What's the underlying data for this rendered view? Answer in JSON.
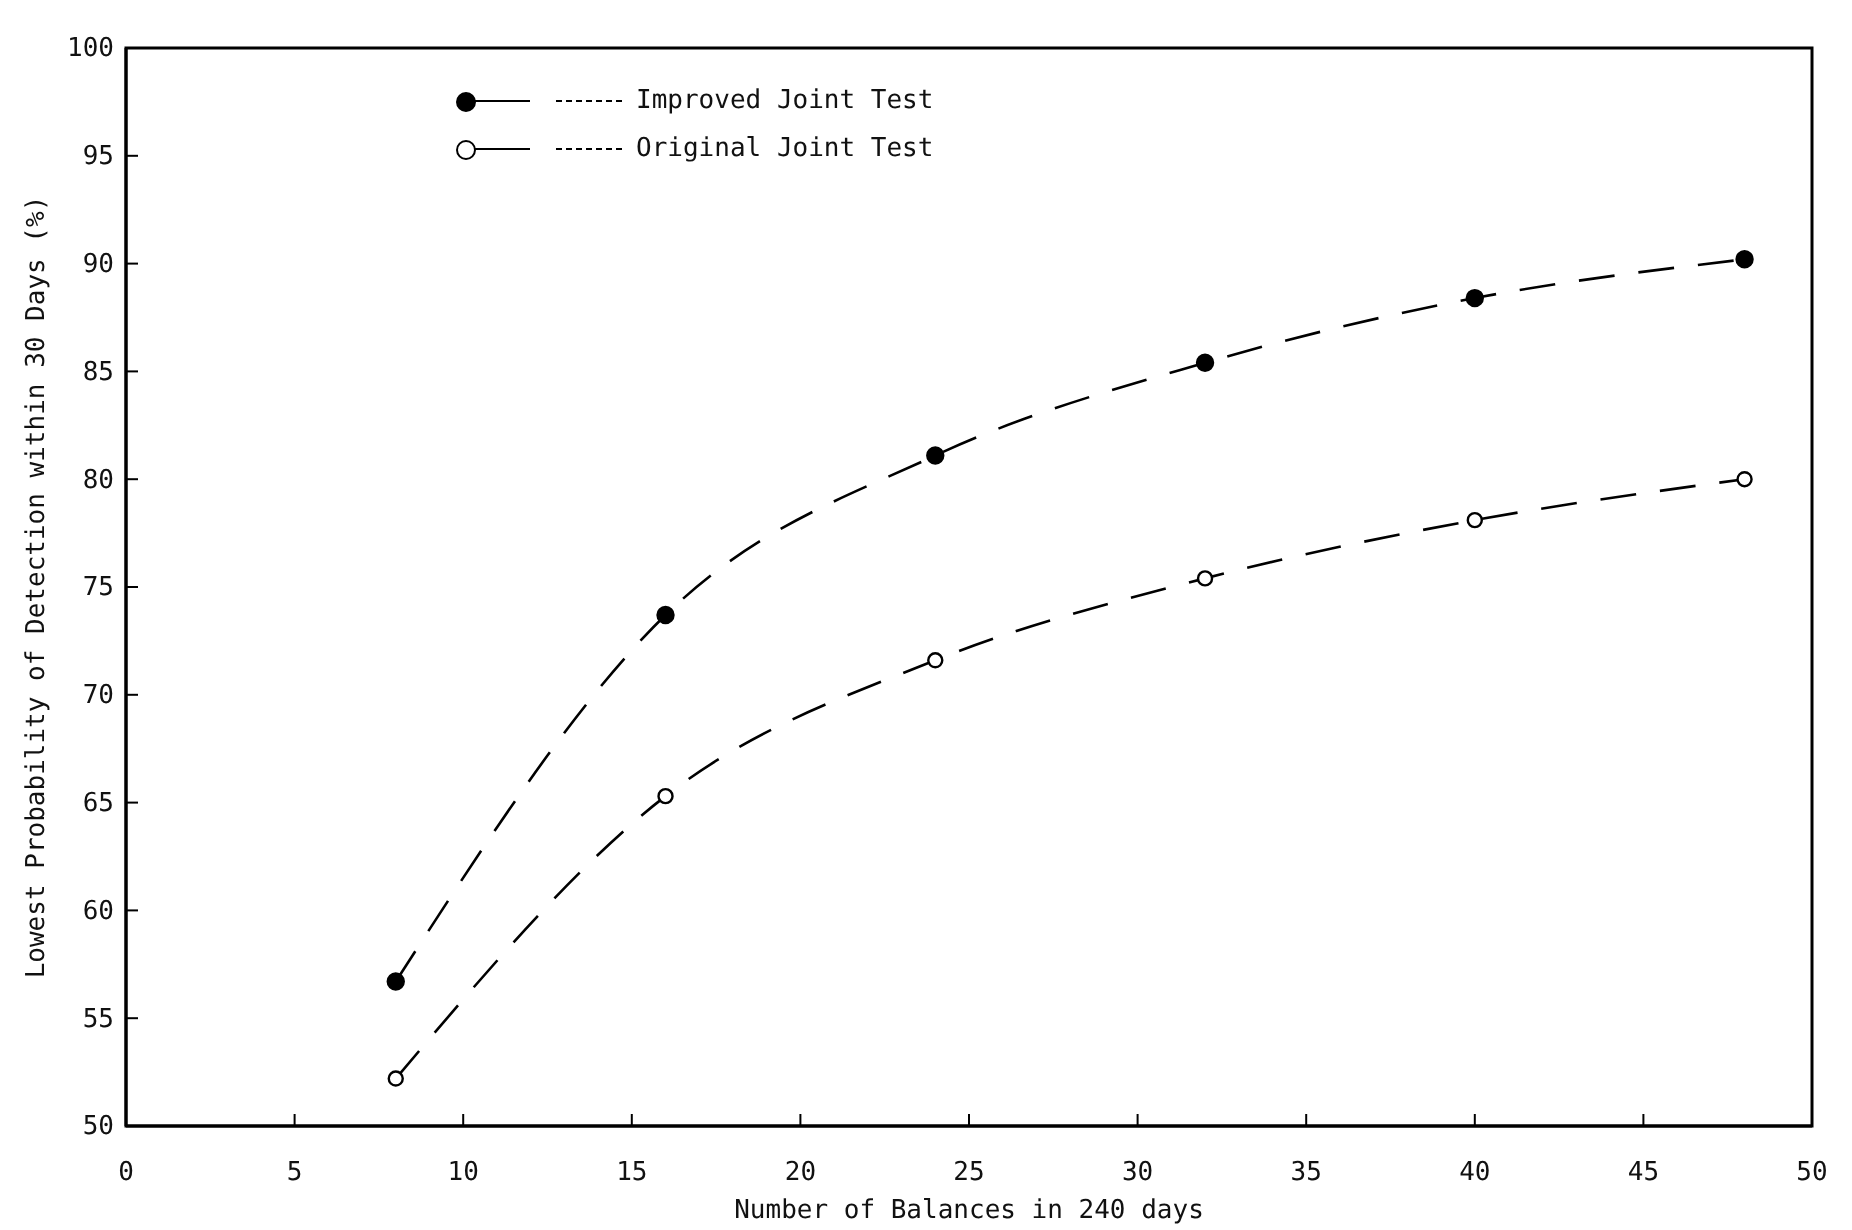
{
  "chart_data": {
    "type": "line",
    "xlabel": "Number of Balances in 240 days",
    "ylabel": "Lowest Probability of Detection within 30 Days (%)",
    "x": [
      8,
      16,
      24,
      32,
      40,
      48
    ],
    "series": [
      {
        "name": "Improved Joint Test",
        "color": "#000000",
        "values": [
          56.7,
          73.7,
          81.1,
          85.4,
          88.4,
          90.2
        ]
      },
      {
        "name": "Original Joint Test",
        "color": "#000000",
        "values": [
          52.2,
          65.3,
          71.6,
          75.4,
          78.1,
          80.0
        ]
      }
    ],
    "xlim": [
      0,
      50
    ],
    "xticks": [
      0,
      5,
      10,
      15,
      20,
      25,
      30,
      35,
      40,
      45,
      50
    ],
    "ylim": [
      50,
      100
    ],
    "yticks": [
      50,
      55,
      60,
      65,
      70,
      75,
      80,
      85,
      90,
      95,
      100
    ],
    "grid": false,
    "marker": "circle",
    "legend": "top left",
    "line_style": "dashed"
  }
}
